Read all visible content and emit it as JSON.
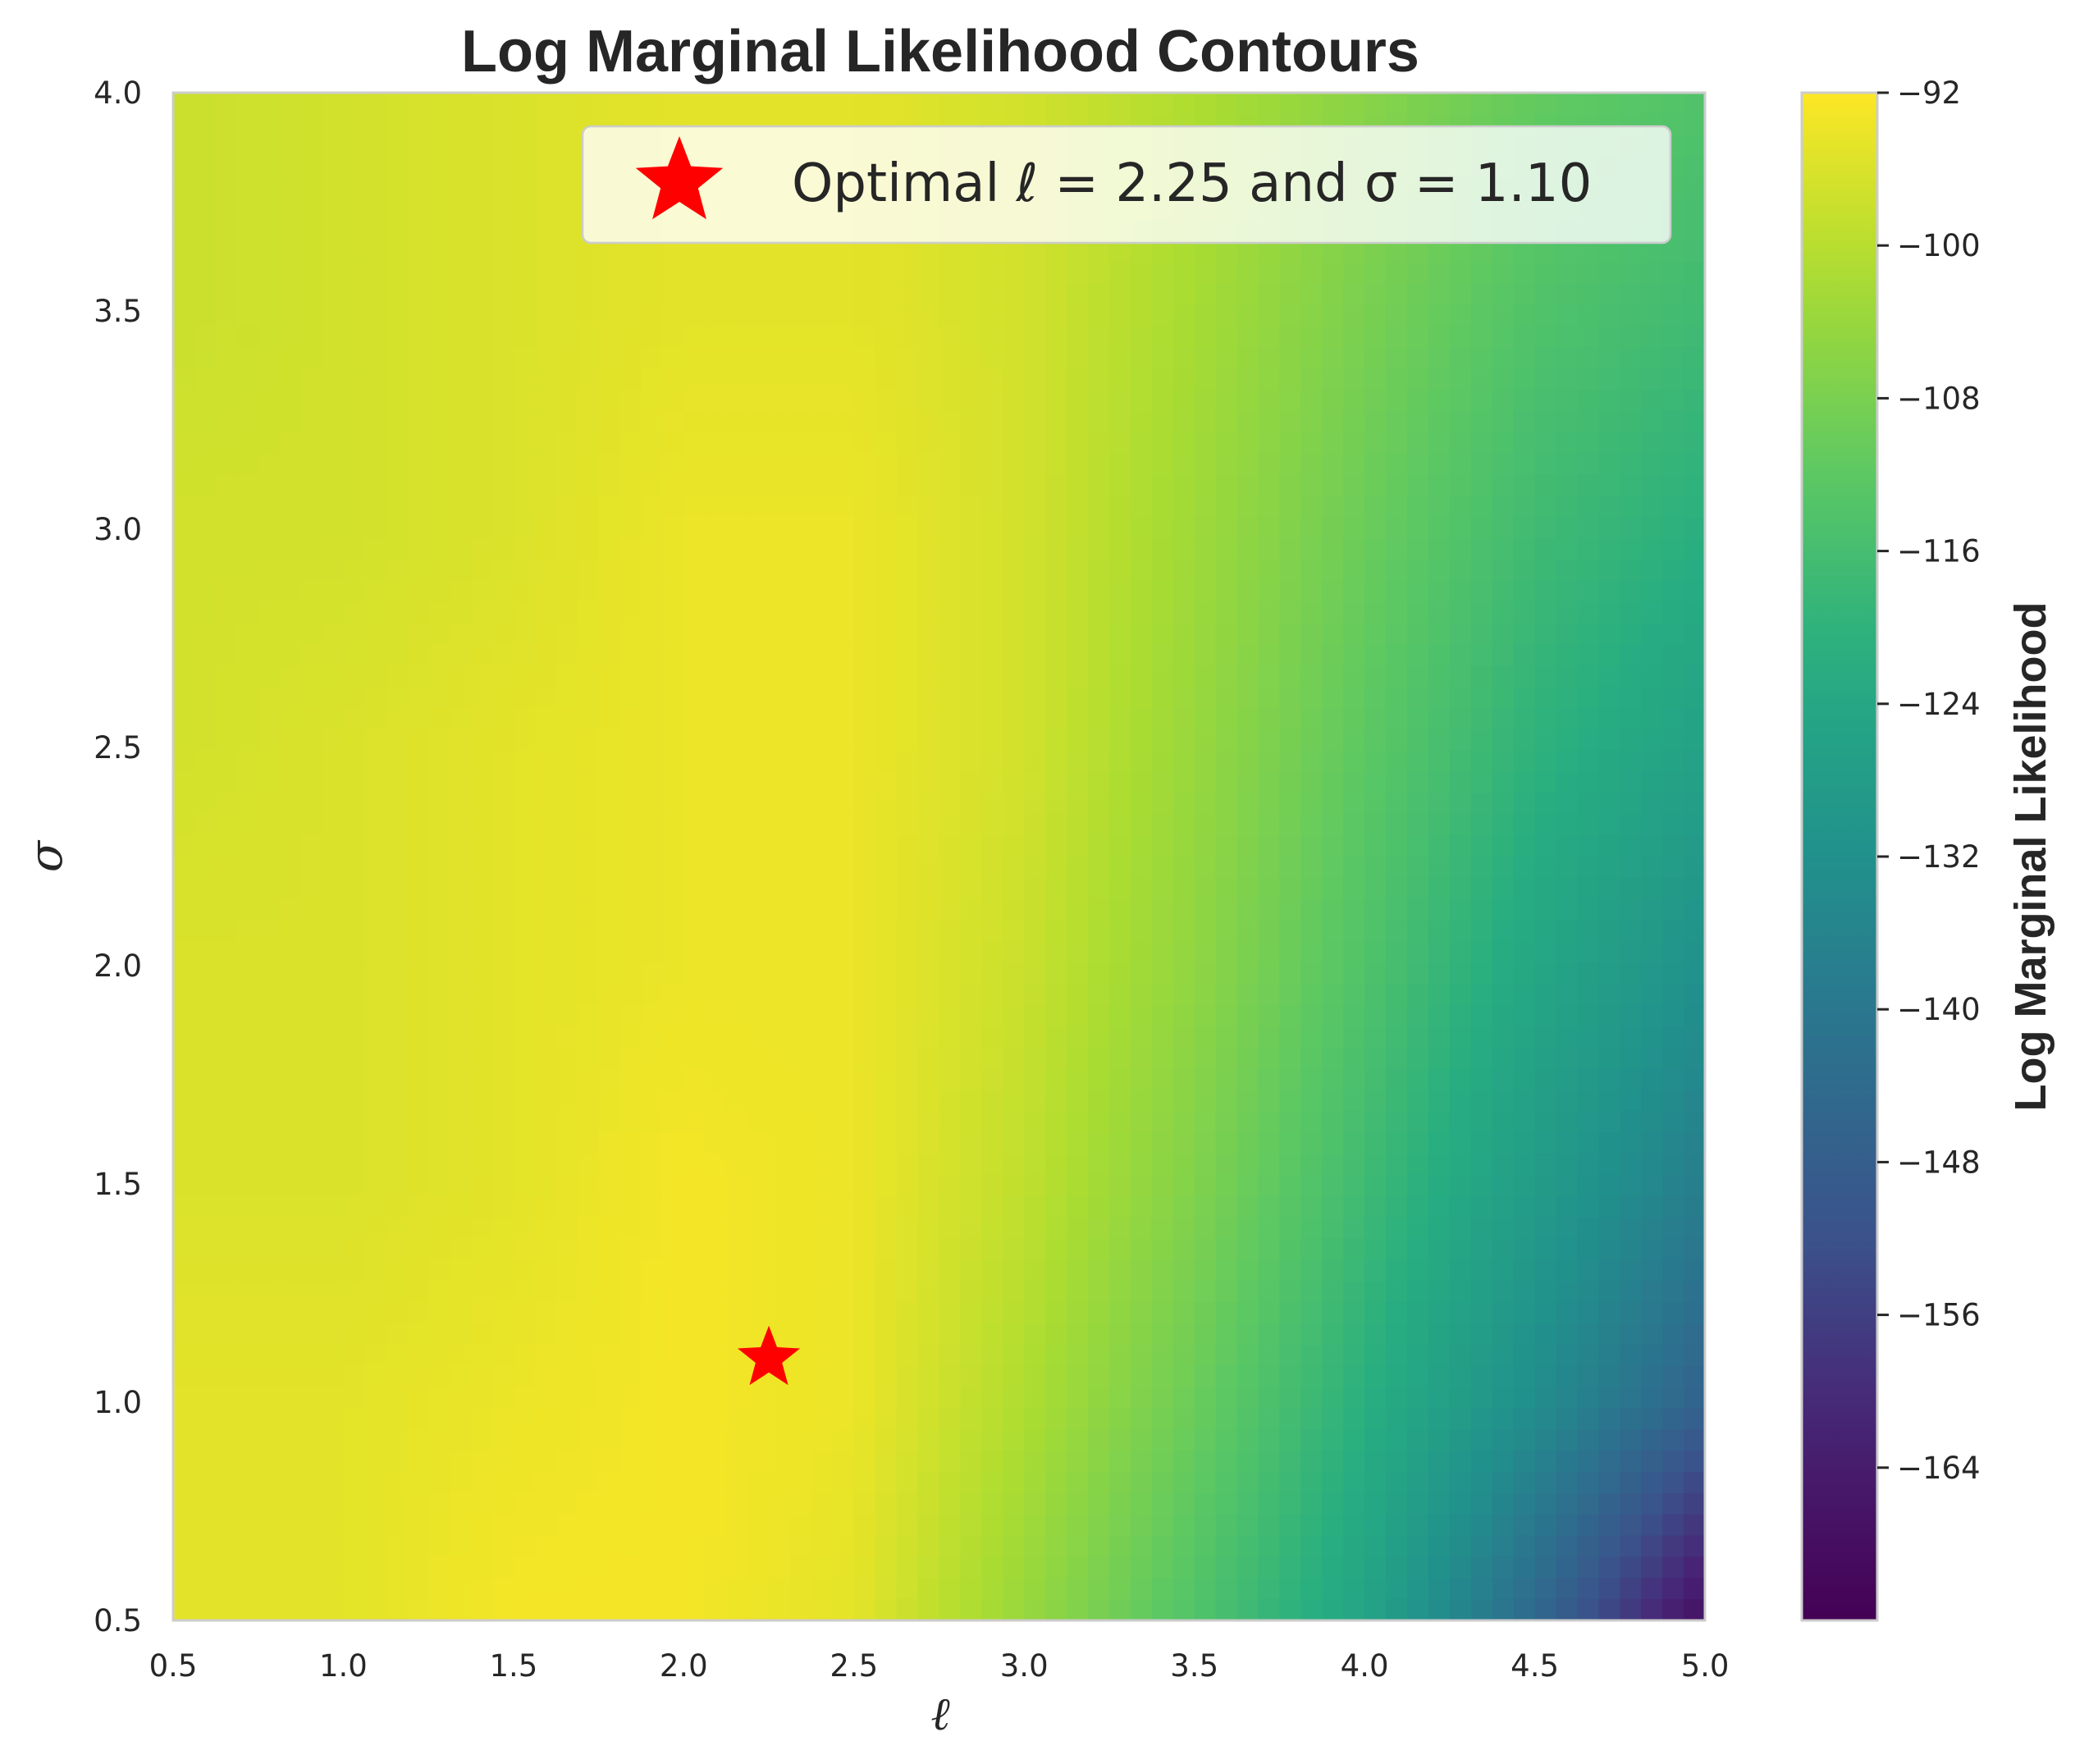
{
  "chart_data": {
    "type": "heatmap",
    "subtype": "filled-contour",
    "title": "Log Marginal Likelihood Contours",
    "xlabel": "ℓ",
    "ylabel": "σ",
    "xlim": [
      0.5,
      5.0
    ],
    "ylim": [
      0.5,
      4.0
    ],
    "xticks": [
      "0.5",
      "1.0",
      "1.5",
      "2.0",
      "2.5",
      "3.0",
      "3.5",
      "4.0",
      "4.5",
      "5.0"
    ],
    "yticks": [
      "0.5",
      "1.0",
      "1.5",
      "2.0",
      "2.5",
      "3.0",
      "3.5",
      "4.0"
    ],
    "grid": false,
    "colormap": "viridis",
    "colorbar": {
      "label": "Log Marginal Likelihood",
      "min": -172,
      "max": -92,
      "ticks": [
        {
          "value": -92,
          "label": "−92"
        },
        {
          "value": -100,
          "label": "−100"
        },
        {
          "value": -108,
          "label": "−108"
        },
        {
          "value": -116,
          "label": "−116"
        },
        {
          "value": -124,
          "label": "−124"
        },
        {
          "value": -132,
          "label": "−132"
        },
        {
          "value": -140,
          "label": "−140"
        },
        {
          "value": -148,
          "label": "−148"
        },
        {
          "value": -156,
          "label": "−156"
        },
        {
          "value": -164,
          "label": "−164"
        }
      ]
    },
    "surface": {
      "x": [
        0.5,
        1.0,
        1.5,
        2.0,
        2.5,
        3.0,
        3.5,
        4.0,
        4.5,
        5.0
      ],
      "y": [
        0.5,
        1.0,
        1.5,
        2.0,
        2.5,
        3.0,
        3.5,
        4.0
      ],
      "z": [
        [
          -95,
          -95,
          -93,
          -93,
          -95,
          -104,
          -114,
          -125,
          -145,
          -168
        ],
        [
          -95,
          -95,
          -94,
          -93,
          -94,
          -101,
          -110,
          -121,
          -133,
          -147
        ],
        [
          -96,
          -96,
          -95,
          -93,
          -94,
          -99,
          -107,
          -117,
          -128,
          -138
        ],
        [
          -96,
          -96,
          -95,
          -94,
          -94,
          -98,
          -105,
          -114,
          -124,
          -132
        ],
        [
          -97,
          -96,
          -95,
          -94,
          -94,
          -97,
          -104,
          -112,
          -120,
          -126
        ],
        [
          -97,
          -97,
          -96,
          -94,
          -94,
          -97,
          -103,
          -110,
          -117,
          -121
        ],
        [
          -98,
          -97,
          -96,
          -95,
          -95,
          -97,
          -102,
          -108,
          -114,
          -117
        ],
        [
          -98,
          -97,
          -96,
          -95,
          -95,
          -97,
          -101,
          -106,
          -111,
          -114
        ]
      ]
    },
    "optimum": {
      "x": 2.25,
      "y": 1.1,
      "marker": "star",
      "color": "#ff0000"
    },
    "legend": {
      "position": "upper right",
      "entries": [
        {
          "label": "Optimal ℓ = 2.25 and σ = 1.10",
          "marker": "star",
          "color": "#ff0000"
        }
      ]
    }
  }
}
